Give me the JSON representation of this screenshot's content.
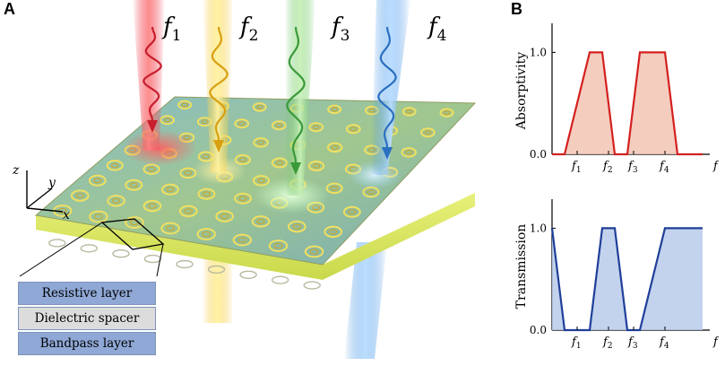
{
  "panels": {
    "a": "A",
    "b": "B"
  },
  "frequencies": [
    {
      "label": "f",
      "sub": "1",
      "color": "#e8384a"
    },
    {
      "label": "f",
      "sub": "2",
      "color": "#f2c230"
    },
    {
      "label": "f",
      "sub": "3",
      "color": "#5fbf5a"
    },
    {
      "label": "f",
      "sub": "4",
      "color": "#3f8fe0"
    }
  ],
  "axes3d": {
    "z": "z",
    "y": "y",
    "x": "x"
  },
  "layers": [
    {
      "label": "Resistive layer",
      "color": "#8fa8d6"
    },
    {
      "label": "Dielectric spacer",
      "color": "#dcdcdc"
    },
    {
      "label": "Bandpass layer",
      "color": "#8fa8d6"
    }
  ],
  "chart_data": [
    {
      "type": "line",
      "ylabel": "Absorptivity",
      "xlabel": "f",
      "yticks": [
        "0.0",
        "1.0"
      ],
      "xticks": [
        {
          "label": "f",
          "sub": "1"
        },
        {
          "label": "f",
          "sub": "2"
        },
        {
          "label": "f",
          "sub": "3"
        },
        {
          "label": "f",
          "sub": "4"
        }
      ],
      "line_color": "#d42020",
      "fill_color": "#f2c4b4",
      "x": [
        0,
        0.5,
        1.5,
        2.0,
        2.5,
        3.0,
        3.5,
        4.5,
        5.0,
        6.0
      ],
      "y": [
        0,
        0,
        1.0,
        1.0,
        0,
        0,
        1.0,
        1.0,
        0,
        0
      ]
    },
    {
      "type": "line",
      "ylabel": "Transmission",
      "xlabel": "f",
      "yticks": [
        "0.0",
        "1.0"
      ],
      "xticks": [
        {
          "label": "f",
          "sub": "1"
        },
        {
          "label": "f",
          "sub": "2"
        },
        {
          "label": "f",
          "sub": "3"
        },
        {
          "label": "f",
          "sub": "4"
        }
      ],
      "line_color": "#1f3f99",
      "fill_color": "#b9cbea",
      "x": [
        0,
        0.5,
        1.5,
        2.0,
        2.5,
        3.0,
        3.5,
        4.5,
        5.0,
        6.0
      ],
      "y": [
        1.0,
        0,
        0,
        1.0,
        1.0,
        0,
        0,
        1.0,
        1.0,
        1.0
      ]
    }
  ]
}
